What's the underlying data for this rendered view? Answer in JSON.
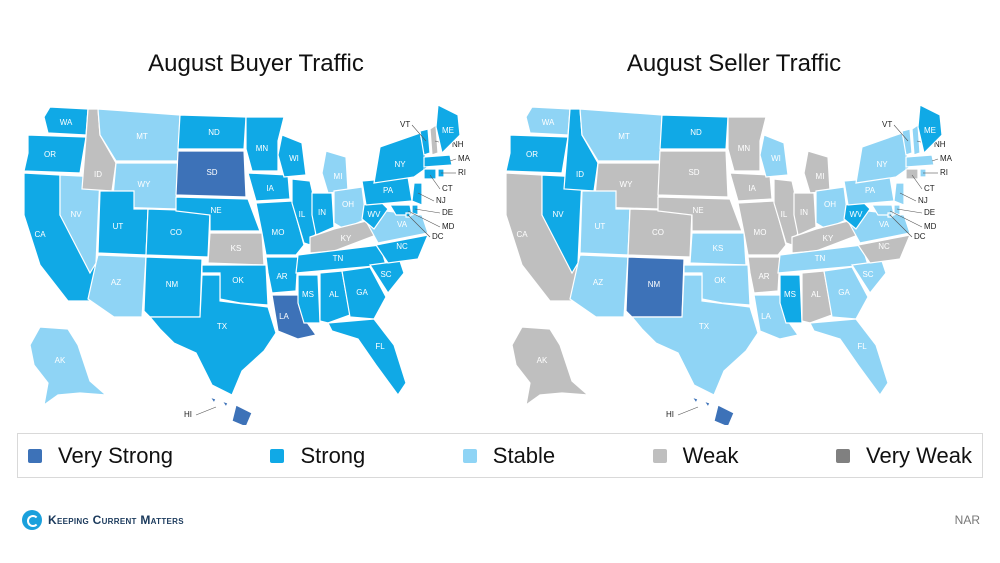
{
  "maps": [
    {
      "title": "August Buyer Traffic",
      "states": {
        "WA": "strong",
        "OR": "strong",
        "CA": "strong",
        "ID": "weak",
        "NV": "stable",
        "MT": "stable",
        "WY": "stable",
        "UT": "strong",
        "AZ": "stable",
        "CO": "strong",
        "NM": "strong",
        "ND": "strong",
        "SD": "very_strong",
        "NE": "strong",
        "KS": "weak",
        "OK": "strong",
        "TX": "strong",
        "MN": "strong",
        "IA": "strong",
        "MO": "strong",
        "AR": "strong",
        "LA": "very_strong",
        "WI": "strong",
        "IL": "strong",
        "MI": "stable",
        "IN": "strong",
        "OH": "stable",
        "KY": "weak",
        "TN": "strong",
        "MS": "strong",
        "AL": "strong",
        "GA": "strong",
        "FL": "strong",
        "SC": "strong",
        "NC": "strong",
        "VA": "stable",
        "WV": "strong",
        "PA": "strong",
        "NY": "strong",
        "VT": "strong",
        "NH": "weak",
        "ME": "strong",
        "MA": "strong",
        "RI": "strong",
        "CT": "strong",
        "NJ": "strong",
        "DE": "strong",
        "MD": "strong",
        "DC": "strong",
        "AK": "stable",
        "HI": "very_strong"
      }
    },
    {
      "title": "August Seller Traffic",
      "states": {
        "WA": "stable",
        "OR": "strong",
        "CA": "weak",
        "ID": "strong",
        "NV": "strong",
        "MT": "stable",
        "WY": "weak",
        "UT": "stable",
        "AZ": "stable",
        "CO": "weak",
        "NM": "very_strong",
        "ND": "strong",
        "SD": "weak",
        "NE": "weak",
        "KS": "stable",
        "OK": "stable",
        "TX": "stable",
        "MN": "weak",
        "IA": "weak",
        "MO": "weak",
        "AR": "weak",
        "LA": "stable",
        "WI": "stable",
        "IL": "weak",
        "MI": "weak",
        "IN": "weak",
        "OH": "stable",
        "KY": "weak",
        "TN": "stable",
        "MS": "strong",
        "AL": "weak",
        "GA": "stable",
        "FL": "stable",
        "SC": "stable",
        "NC": "weak",
        "VA": "stable",
        "WV": "strong",
        "PA": "stable",
        "NY": "stable",
        "VT": "stable",
        "NH": "stable",
        "ME": "strong",
        "MA": "stable",
        "RI": "stable",
        "CT": "weak",
        "NJ": "stable",
        "DE": "stable",
        "MD": "stable",
        "DC": "stable",
        "AK": "weak",
        "HI": "very_strong"
      }
    }
  ],
  "legend": [
    {
      "key": "very_strong",
      "label": "Very Strong",
      "color": "#3d72b8"
    },
    {
      "key": "strong",
      "label": "Strong",
      "color": "#10a9e6"
    },
    {
      "key": "stable",
      "label": "Stable",
      "color": "#8fd4f5"
    },
    {
      "key": "weak",
      "label": "Weak",
      "color": "#bfbfbf"
    },
    {
      "key": "very_weak",
      "label": "Very Weak",
      "color": "#808080"
    }
  ],
  "footer": {
    "brand": "Keeping Current Matters",
    "source": "NAR"
  }
}
